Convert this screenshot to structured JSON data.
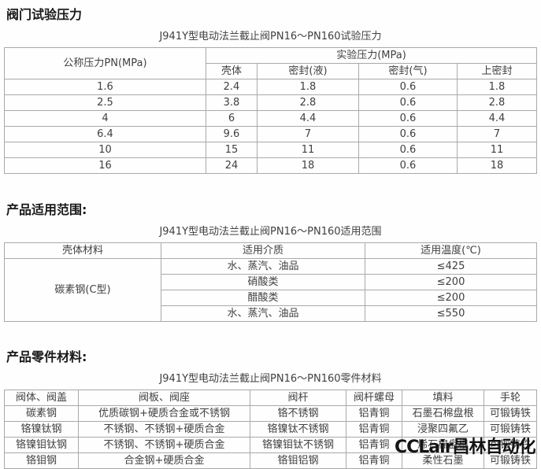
{
  "colors": {
    "border": "#a9a9a9",
    "text": "#404040",
    "title": "#1a1a1a",
    "background": "#fefefe",
    "watermark": "#141414"
  },
  "test_pressure": {
    "title": "阀门试验压力",
    "caption": "J941Y型电动法兰截止阀PN16～PN160试验压力",
    "header": {
      "pn": "公称压力PN(MPa)",
      "group": "实验压力(MPa)",
      "sub": [
        "壳体",
        "密封(液)",
        "密封(气)",
        "上密封"
      ]
    },
    "rows": [
      [
        "1.6",
        "2.4",
        "1.8",
        "0.6",
        "1.8"
      ],
      [
        "2.5",
        "3.8",
        "2.8",
        "0.6",
        "2.8"
      ],
      [
        "4",
        "6",
        "4.4",
        "0.6",
        "4.4"
      ],
      [
        "6.4",
        "9.6",
        "7",
        "0.6",
        "7"
      ],
      [
        "10",
        "15",
        "11",
        "0.6",
        "11"
      ],
      [
        "16",
        "24",
        "18",
        "0.6",
        "18"
      ]
    ]
  },
  "application_range": {
    "title": "产品适用范围:",
    "caption": "J941Y型电动法兰截止阀PN16～PN160适用范围",
    "header": [
      "壳体材料",
      "适用介质",
      "适用温度(℃)"
    ],
    "rows": [
      [
        {
          "t": "碳素钢(C型)",
          "rs": 4
        },
        "水、蒸汽、油品",
        "≤425"
      ],
      [
        "硝酸类",
        "≤200"
      ],
      [
        "醋酸类",
        "≤200"
      ],
      [
        "水、蒸汽、油品",
        "≤550"
      ]
    ]
  },
  "parts_material": {
    "title": "产品零件材料:",
    "caption": "J941Y型电动法兰截止阀PN16～PN160零件材料",
    "header": [
      "阀体、阀盖",
      "阀板、阀座",
      "阀杆",
      "阀杆螺母",
      "填料",
      "手轮"
    ],
    "rows": [
      [
        "碳素钢",
        "优质碳钢+硬质合金或不锈钢",
        "铬不锈钢",
        "铝青铜",
        "石墨石棉盘根",
        "可锻铸铁"
      ],
      [
        "铬镍钛钢",
        "不锈钢、不锈钢+硬质合金",
        "铬镍钛不锈钢",
        "铝青铜",
        "浸聚四氟乙",
        "可锻铸铁"
      ],
      [
        "铬镍钼钛钢",
        "不锈钢、不锈钢+硬质合金",
        "铬镍钼钛不锈钢",
        "铝青铜",
        "烯石棉盘根",
        "可锻铸铁"
      ],
      [
        "铬钼钢",
        "合金钢+硬质合金",
        "铬钼铝钢",
        "铝青铜",
        "柔性石墨",
        "可锻铸铁"
      ]
    ]
  },
  "watermark": {
    "text": "CCLair昌林自动化"
  }
}
